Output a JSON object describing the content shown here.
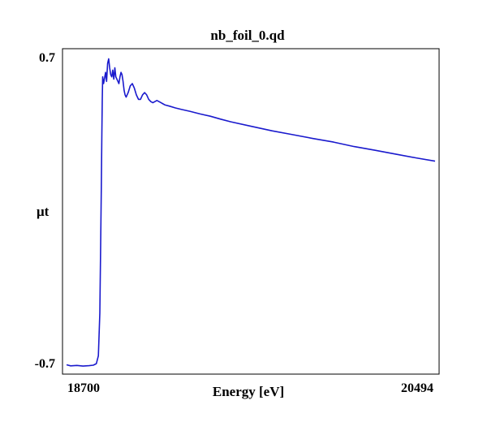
{
  "chart_data": {
    "type": "line",
    "title": "nb_foil_0.qd",
    "xlabel": "Energy [eV]",
    "ylabel": "μt",
    "xlim": [
      18700,
      20494
    ],
    "ylim": [
      -0.7,
      0.7
    ],
    "x_tick_labels": [
      "18700",
      "20494"
    ],
    "y_tick_labels": [
      "0.7",
      "-0.7"
    ],
    "grid": false,
    "legend": "none",
    "series_color": "#1a1acd",
    "series": [
      {
        "x": [
          18700,
          18720,
          18750,
          18780,
          18810,
          18830,
          18845,
          18855,
          18862,
          18866,
          18869,
          18872,
          18874,
          18876,
          18880,
          18886,
          18890,
          18895,
          18900,
          18905,
          18910,
          18915,
          18920,
          18925,
          18930,
          18935,
          18940,
          18945,
          18950,
          18955,
          18960,
          18965,
          18970,
          18975,
          18980,
          18985,
          18990,
          19000,
          19010,
          19020,
          19030,
          19040,
          19050,
          19060,
          19070,
          19080,
          19090,
          19100,
          19110,
          19120,
          19130,
          19140,
          19150,
          19160,
          19170,
          19180,
          19200,
          19230,
          19260,
          19300,
          19350,
          19400,
          19450,
          19500,
          19600,
          19700,
          19800,
          19900,
          20000,
          20100,
          20200,
          20300,
          20400,
          20494
        ],
        "y": [
          -0.68,
          -0.685,
          -0.683,
          -0.686,
          -0.684,
          -0.682,
          -0.675,
          -0.64,
          -0.45,
          -0.15,
          0.1,
          0.35,
          0.5,
          0.6,
          0.57,
          0.6,
          0.62,
          0.58,
          0.66,
          0.68,
          0.64,
          0.61,
          0.6,
          0.63,
          0.59,
          0.64,
          0.6,
          0.59,
          0.58,
          0.57,
          0.6,
          0.62,
          0.61,
          0.58,
          0.54,
          0.52,
          0.51,
          0.53,
          0.56,
          0.57,
          0.55,
          0.52,
          0.5,
          0.5,
          0.52,
          0.53,
          0.52,
          0.5,
          0.49,
          0.485,
          0.49,
          0.495,
          0.49,
          0.485,
          0.48,
          0.475,
          0.47,
          0.462,
          0.455,
          0.447,
          0.435,
          0.425,
          0.412,
          0.4,
          0.38,
          0.36,
          0.343,
          0.326,
          0.31,
          0.29,
          0.274,
          0.257,
          0.24,
          0.225
        ]
      }
    ]
  }
}
